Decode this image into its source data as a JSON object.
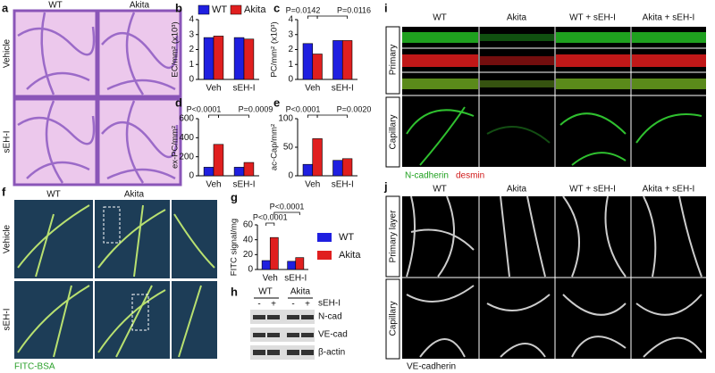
{
  "chart_data": [
    {
      "panel": "b",
      "type": "bar",
      "ylabel": "EC/mm² (x10³)",
      "categories": [
        "Veh",
        "sEH-I"
      ],
      "series": [
        {
          "name": "WT",
          "color": "#1f1fe0",
          "values": [
            2.8,
            2.8
          ]
        },
        {
          "name": "Akita",
          "color": "#e01f1f",
          "values": [
            2.9,
            2.7
          ]
        }
      ],
      "ylim": [
        0,
        4
      ],
      "yticks": [
        0,
        1,
        2,
        3,
        4
      ],
      "legend": "top"
    },
    {
      "panel": "c",
      "type": "bar",
      "ylabel": "PC/mm² (x10³)",
      "categories": [
        "Veh",
        "sEH-I"
      ],
      "series": [
        {
          "color": "#1f1fe0",
          "values": [
            2.4,
            2.6
          ]
        },
        {
          "color": "#e01f1f",
          "values": [
            1.7,
            2.6
          ]
        }
      ],
      "ylim": [
        0,
        4
      ],
      "yticks": [
        0,
        1,
        2,
        3,
        4
      ],
      "annotations": [
        "P=0.0142",
        "P=0.0116"
      ]
    },
    {
      "panel": "d",
      "type": "bar",
      "ylabel": "ex-PC/mm²",
      "categories": [
        "Veh",
        "sEH-I"
      ],
      "series": [
        {
          "color": "#1f1fe0",
          "values": [
            90,
            90
          ]
        },
        {
          "color": "#e01f1f",
          "values": [
            330,
            140
          ]
        }
      ],
      "ylim": [
        0,
        600
      ],
      "yticks": [
        0,
        200,
        400,
        600
      ],
      "annotations": [
        "P<0.0001",
        "P=0.0009"
      ]
    },
    {
      "panel": "e",
      "type": "bar",
      "ylabel": "ac-Cap/mm²",
      "categories": [
        "Veh",
        "sEH-I"
      ],
      "series": [
        {
          "color": "#1f1fe0",
          "values": [
            20,
            27
          ]
        },
        {
          "color": "#e01f1f",
          "values": [
            65,
            30
          ]
        }
      ],
      "ylim": [
        0,
        100
      ],
      "yticks": [
        0,
        50,
        100
      ],
      "annotations": [
        "P<0.0001",
        "P=0.0020"
      ]
    },
    {
      "panel": "g",
      "type": "bar",
      "ylabel": "FITC signal/mg",
      "categories": [
        "Veh",
        "sEH-I"
      ],
      "series": [
        {
          "name": "WT",
          "color": "#1f1fe0",
          "values": [
            12,
            11
          ]
        },
        {
          "name": "Akita",
          "color": "#e01f1f",
          "values": [
            43,
            16
          ]
        }
      ],
      "ylim": [
        0,
        60
      ],
      "yticks": [
        0,
        20,
        40,
        60
      ],
      "annotations": [
        "P<0.0001",
        "P<0.0001"
      ],
      "legend": "right"
    }
  ],
  "panels": {
    "a": {
      "label": "a",
      "columns": [
        "WT",
        "Akita"
      ],
      "rows": [
        "Vehicle",
        "sEH-I"
      ]
    },
    "f": {
      "label": "f",
      "columns": [
        "WT",
        "Akita"
      ],
      "rows": [
        "Vehicle",
        "sEH-I"
      ],
      "caption": "FITC-BSA"
    },
    "h": {
      "label": "h",
      "groups": [
        "WT",
        "Akita"
      ],
      "treatment": "sEH-I",
      "signs": [
        "-",
        "+",
        "-",
        "+"
      ],
      "bands": [
        "N-cad",
        "VE-cad",
        "β-actin"
      ]
    },
    "i": {
      "label": "i",
      "columns": [
        "WT",
        "Akita",
        "WT + sEH-I",
        "Akita + sEH-I"
      ],
      "rows": [
        "Primary",
        "Capillary"
      ],
      "stains": [
        "N-cadherin",
        "desmin"
      ]
    },
    "j": {
      "label": "j",
      "columns": [
        "WT",
        "Akita",
        "WT + sEH-I",
        "Akita + sEH-I"
      ],
      "rows": [
        "Primary layer",
        "Capillary"
      ],
      "stain": "VE-cadherin"
    }
  }
}
